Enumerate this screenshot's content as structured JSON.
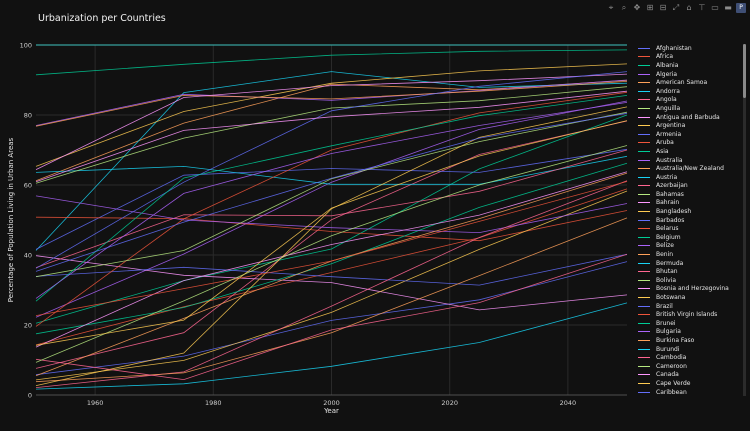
{
  "title": "Urbanization per Countries",
  "modebar": [
    {
      "name": "camera-icon",
      "glyph": "⌖"
    },
    {
      "name": "zoom-icon",
      "glyph": "⌕"
    },
    {
      "name": "pan-icon",
      "glyph": "✥"
    },
    {
      "name": "zoom-in-icon",
      "glyph": "⊞"
    },
    {
      "name": "zoom-out-icon",
      "glyph": "⊟"
    },
    {
      "name": "autoscale-icon",
      "glyph": "⤢"
    },
    {
      "name": "reset-axes-icon",
      "glyph": "⌂"
    },
    {
      "name": "spike-lines-icon",
      "glyph": "⊤"
    },
    {
      "name": "hover-closest-icon",
      "glyph": "▭"
    },
    {
      "name": "hover-compare-icon",
      "glyph": "▬"
    },
    {
      "name": "plotly-logo-icon",
      "glyph": "P"
    }
  ],
  "chart_data": {
    "type": "line",
    "title": "Urbanization per Countries",
    "xlabel": "Year",
    "ylabel": "Percentage of Population Living in Urban Areas",
    "xlim": [
      1950,
      2050
    ],
    "ylim": [
      0,
      100
    ],
    "xticks": [
      1960,
      1980,
      2000,
      2020,
      2040
    ],
    "yticks": [
      0,
      20,
      40,
      60,
      80,
      100
    ],
    "grid": true,
    "legend_position": "right",
    "palette": [
      "#636efa",
      "#ef553b",
      "#00cc96",
      "#ab63fa",
      "#ffa15a",
      "#19d3f3",
      "#ff6692",
      "#b6e880",
      "#ff97ff",
      "#fecb52"
    ],
    "series": [
      {
        "name": "Afghanistan",
        "values": [
          [
            1950,
            5.8
          ],
          [
            1975,
            11.1
          ],
          [
            2000,
            21.3
          ],
          [
            2025,
            27.2
          ],
          [
            2050,
            38.1
          ]
        ]
      },
      {
        "name": "Africa",
        "values": [
          [
            1950,
            14.3
          ],
          [
            1975,
            25.2
          ],
          [
            2000,
            35.0
          ],
          [
            2025,
            44.9
          ],
          [
            2050,
            58.9
          ]
        ]
      },
      {
        "name": "Albania",
        "values": [
          [
            1950,
            20.5
          ],
          [
            1975,
            32.7
          ],
          [
            2000,
            41.7
          ],
          [
            2025,
            64.6
          ],
          [
            2050,
            80.0
          ]
        ]
      },
      {
        "name": "Algeria",
        "values": [
          [
            1950,
            22.2
          ],
          [
            1975,
            40.3
          ],
          [
            2000,
            60.8
          ],
          [
            2025,
            75.9
          ],
          [
            2050,
            84.0
          ]
        ]
      },
      {
        "name": "American Samoa",
        "values": [
          [
            1950,
            61.2
          ],
          [
            1975,
            77.7
          ],
          [
            2000,
            88.8
          ],
          [
            2025,
            87.2
          ],
          [
            2050,
            89.9
          ]
        ]
      },
      {
        "name": "Andorra",
        "values": [
          [
            1950,
            41.3
          ],
          [
            1975,
            86.4
          ],
          [
            2000,
            92.4
          ],
          [
            2025,
            87.9
          ],
          [
            2050,
            89.1
          ]
        ]
      },
      {
        "name": "Angola",
        "values": [
          [
            1950,
            7.6
          ],
          [
            1975,
            17.8
          ],
          [
            2000,
            50.1
          ],
          [
            2025,
            68.7
          ],
          [
            2050,
            78.3
          ]
        ]
      },
      {
        "name": "Anguilla",
        "values": [
          [
            1950,
            100.0
          ],
          [
            1975,
            100.0
          ],
          [
            2000,
            100.0
          ],
          [
            2025,
            100.0
          ],
          [
            2050,
            100.0
          ]
        ]
      },
      {
        "name": "Antigua and Barbuda",
        "values": [
          [
            1950,
            39.8
          ],
          [
            1975,
            34.2
          ],
          [
            2000,
            32.1
          ],
          [
            2025,
            24.3
          ],
          [
            2050,
            28.6
          ]
        ]
      },
      {
        "name": "Argentina",
        "values": [
          [
            1950,
            65.3
          ],
          [
            1975,
            81.0
          ],
          [
            2000,
            89.1
          ],
          [
            2025,
            92.6
          ],
          [
            2050,
            94.6
          ]
        ]
      },
      {
        "name": "Armenia",
        "values": [
          [
            1950,
            41.6
          ],
          [
            1975,
            62.8
          ],
          [
            2000,
            64.7
          ],
          [
            2025,
            63.6
          ],
          [
            2050,
            70.2
          ]
        ]
      },
      {
        "name": "Aruba",
        "values": [
          [
            1950,
            50.8
          ],
          [
            1975,
            50.4
          ],
          [
            2000,
            46.7
          ],
          [
            2025,
            44.1
          ],
          [
            2050,
            52.7
          ]
        ]
      },
      {
        "name": "Asia",
        "values": [
          [
            1950,
            17.5
          ],
          [
            1975,
            25.0
          ],
          [
            2000,
            37.5
          ],
          [
            2025,
            53.6
          ],
          [
            2050,
            66.2
          ]
        ]
      },
      {
        "name": "Australia",
        "values": [
          [
            1950,
            77.0
          ],
          [
            1975,
            85.9
          ],
          [
            2000,
            84.2
          ],
          [
            2025,
            87.0
          ],
          [
            2050,
            90.0
          ]
        ]
      },
      {
        "name": "Australia/New Zealand",
        "values": [
          [
            1950,
            76.8
          ],
          [
            1975,
            85.6
          ],
          [
            2000,
            84.6
          ],
          [
            2025,
            86.8
          ],
          [
            2050,
            89.6
          ]
        ]
      },
      {
        "name": "Austria",
        "values": [
          [
            1950,
            63.6
          ],
          [
            1975,
            65.3
          ],
          [
            2000,
            60.2
          ],
          [
            2025,
            60.2
          ],
          [
            2050,
            68.2
          ]
        ]
      },
      {
        "name": "Azerbaijan",
        "values": [
          [
            1950,
            36.4
          ],
          [
            1975,
            51.5
          ],
          [
            2000,
            51.2
          ],
          [
            2025,
            58.2
          ],
          [
            2050,
            70.0
          ]
        ]
      },
      {
        "name": "Bahamas",
        "values": [
          [
            1950,
            60.5
          ],
          [
            1975,
            73.4
          ],
          [
            2000,
            82.0
          ],
          [
            2025,
            84.1
          ],
          [
            2050,
            88.1
          ]
        ]
      },
      {
        "name": "Bahrain",
        "values": [
          [
            1950,
            64.4
          ],
          [
            1975,
            85.0
          ],
          [
            2000,
            88.4
          ],
          [
            2025,
            89.8
          ],
          [
            2050,
            91.7
          ]
        ]
      },
      {
        "name": "Bangladesh",
        "values": [
          [
            1950,
            4.3
          ],
          [
            1975,
            9.9
          ],
          [
            2000,
            23.6
          ],
          [
            2025,
            41.6
          ],
          [
            2050,
            58.3
          ]
        ]
      },
      {
        "name": "Barbados",
        "values": [
          [
            1950,
            33.9
          ],
          [
            1975,
            36.5
          ],
          [
            2000,
            33.8
          ],
          [
            2025,
            31.4
          ],
          [
            2050,
            40.2
          ]
        ]
      },
      {
        "name": "Belarus",
        "values": [
          [
            1950,
            19.6
          ],
          [
            1975,
            50.3
          ],
          [
            2000,
            70.0
          ],
          [
            2025,
            80.6
          ],
          [
            2050,
            86.5
          ]
        ]
      },
      {
        "name": "Belgium",
        "values": [
          [
            1950,
            91.5
          ],
          [
            1975,
            94.5
          ],
          [
            2000,
            97.1
          ],
          [
            2025,
            98.2
          ],
          [
            2050,
            98.6
          ]
        ]
      },
      {
        "name": "Belize",
        "values": [
          [
            1950,
            56.9
          ],
          [
            1975,
            50.0
          ],
          [
            2000,
            47.8
          ],
          [
            2025,
            46.4
          ],
          [
            2050,
            54.7
          ]
        ]
      },
      {
        "name": "Benin",
        "values": [
          [
            1950,
            5.5
          ],
          [
            1975,
            21.9
          ],
          [
            2000,
            38.3
          ],
          [
            2025,
            50.4
          ],
          [
            2050,
            63.4
          ]
        ]
      },
      {
        "name": "Bermuda",
        "values": [
          [
            1950,
            100.0
          ],
          [
            1975,
            100.0
          ],
          [
            2000,
            100.0
          ],
          [
            2025,
            100.0
          ],
          [
            2050,
            100.0
          ]
        ]
      },
      {
        "name": "Bhutan",
        "values": [
          [
            1950,
            2.1
          ],
          [
            1975,
            6.6
          ],
          [
            2000,
            25.4
          ],
          [
            2025,
            45.0
          ],
          [
            2050,
            61.2
          ]
        ]
      },
      {
        "name": "Bolivia",
        "values": [
          [
            1950,
            33.8
          ],
          [
            1975,
            41.3
          ],
          [
            2000,
            61.8
          ],
          [
            2025,
            72.4
          ],
          [
            2050,
            80.8
          ]
        ]
      },
      {
        "name": "Bosnia and Herzegovina",
        "values": [
          [
            1950,
            13.7
          ],
          [
            1975,
            32.7
          ],
          [
            2000,
            43.0
          ],
          [
            2025,
            51.4
          ],
          [
            2050,
            63.8
          ]
        ]
      },
      {
        "name": "Botswana",
        "values": [
          [
            1950,
            2.7
          ],
          [
            1975,
            12.0
          ],
          [
            2000,
            53.2
          ],
          [
            2025,
            73.6
          ],
          [
            2050,
            82.3
          ]
        ]
      },
      {
        "name": "Brazil",
        "values": [
          [
            1950,
            36.2
          ],
          [
            1975,
            60.8
          ],
          [
            2000,
            81.2
          ],
          [
            2025,
            88.2
          ],
          [
            2050,
            92.4
          ]
        ]
      },
      {
        "name": "British Virgin Islands",
        "values": [
          [
            1950,
            22.7
          ],
          [
            1975,
            30.4
          ],
          [
            2000,
            38.3
          ],
          [
            2025,
            49.6
          ],
          [
            2050,
            61.0
          ]
        ]
      },
      {
        "name": "Brunei",
        "values": [
          [
            1950,
            26.8
          ],
          [
            1975,
            62.0
          ],
          [
            2000,
            71.2
          ],
          [
            2025,
            79.8
          ],
          [
            2050,
            85.6
          ]
        ]
      },
      {
        "name": "Bulgaria",
        "values": [
          [
            1950,
            27.6
          ],
          [
            1975,
            57.6
          ],
          [
            2000,
            69.0
          ],
          [
            2025,
            77.0
          ],
          [
            2050,
            83.6
          ]
        ]
      },
      {
        "name": "Burkina Faso",
        "values": [
          [
            1950,
            3.8
          ],
          [
            1975,
            6.3
          ],
          [
            2000,
            17.8
          ],
          [
            2025,
            34.1
          ],
          [
            2050,
            50.6
          ]
        ]
      },
      {
        "name": "Burundi",
        "values": [
          [
            1950,
            1.7
          ],
          [
            1975,
            3.2
          ],
          [
            2000,
            8.2
          ],
          [
            2025,
            15.0
          ],
          [
            2050,
            26.3
          ]
        ]
      },
      {
        "name": "Cambodia",
        "values": [
          [
            1950,
            10.2
          ],
          [
            1975,
            4.4
          ],
          [
            2000,
            18.6
          ],
          [
            2025,
            26.4
          ],
          [
            2050,
            40.2
          ]
        ]
      },
      {
        "name": "Cameroon",
        "values": [
          [
            1950,
            9.3
          ],
          [
            1975,
            26.9
          ],
          [
            2000,
            45.5
          ],
          [
            2025,
            60.0
          ],
          [
            2050,
            71.3
          ]
        ]
      },
      {
        "name": "Canada",
        "values": [
          [
            1950,
            60.9
          ],
          [
            1975,
            75.6
          ],
          [
            2000,
            79.5
          ],
          [
            2025,
            82.2
          ],
          [
            2050,
            86.8
          ]
        ]
      },
      {
        "name": "Cape Verde",
        "values": [
          [
            1950,
            14.2
          ],
          [
            1975,
            21.4
          ],
          [
            2000,
            53.4
          ],
          [
            2025,
            68.3
          ],
          [
            2050,
            78.4
          ]
        ]
      },
      {
        "name": "Caribbean",
        "values": [
          [
            1950,
            35.3
          ],
          [
            1975,
            49.4
          ],
          [
            2000,
            61.9
          ],
          [
            2025,
            73.4
          ],
          [
            2050,
            80.5
          ]
        ]
      }
    ]
  }
}
